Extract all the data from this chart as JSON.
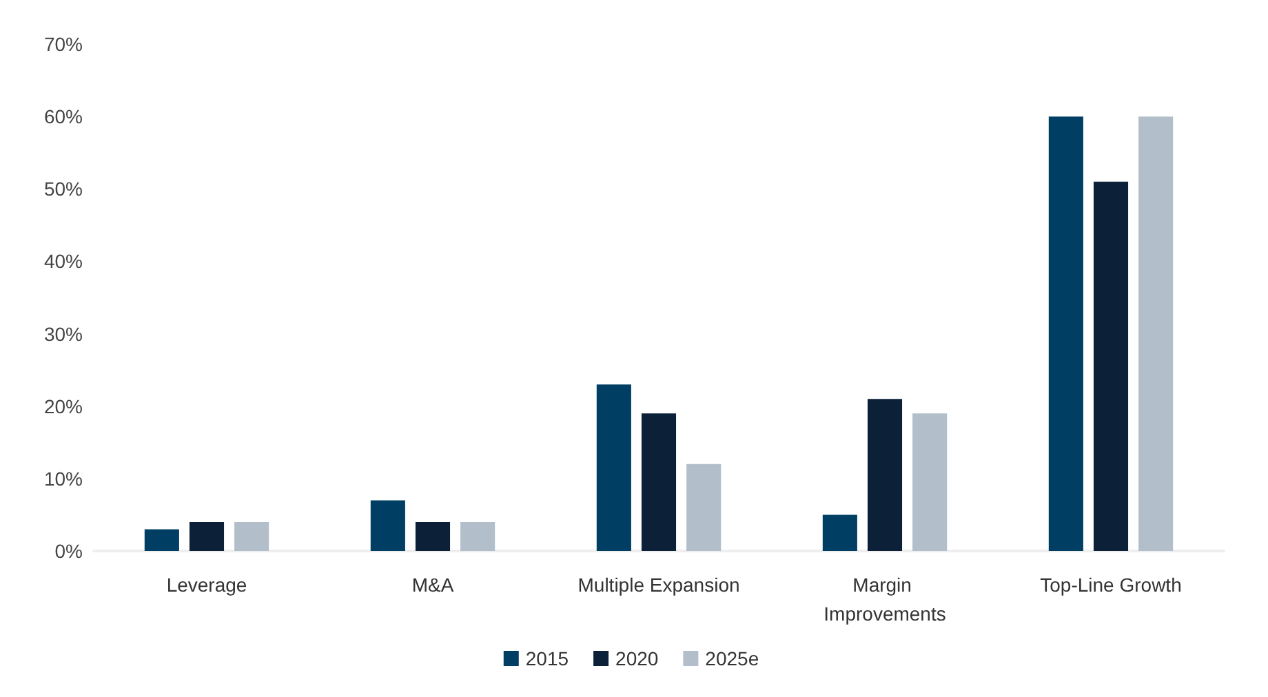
{
  "chart_data": {
    "type": "bar",
    "categories": [
      "Leverage",
      "M&A",
      "Multiple Expansion",
      "Margin Improvements",
      "Top-Line Growth"
    ],
    "series": [
      {
        "name": "2015",
        "color": "#003f63",
        "values": [
          3,
          7,
          23,
          5,
          60
        ]
      },
      {
        "name": "2020",
        "color": "#0c2138",
        "values": [
          4,
          4,
          19,
          21,
          51
        ]
      },
      {
        "name": "2025e",
        "color": "#b2bfcb",
        "values": [
          4,
          4,
          12,
          19,
          60
        ]
      }
    ],
    "ylim": [
      0,
      70
    ],
    "yticks": [
      {
        "value": 0,
        "label": "0%"
      },
      {
        "value": 10,
        "label": "10%"
      },
      {
        "value": 20,
        "label": "20%"
      },
      {
        "value": 30,
        "label": "30%"
      },
      {
        "value": 40,
        "label": "40%"
      },
      {
        "value": 50,
        "label": "50%"
      },
      {
        "value": 60,
        "label": "60%"
      },
      {
        "value": 70,
        "label": "70%"
      }
    ],
    "grid": false,
    "legend": "bottom"
  }
}
